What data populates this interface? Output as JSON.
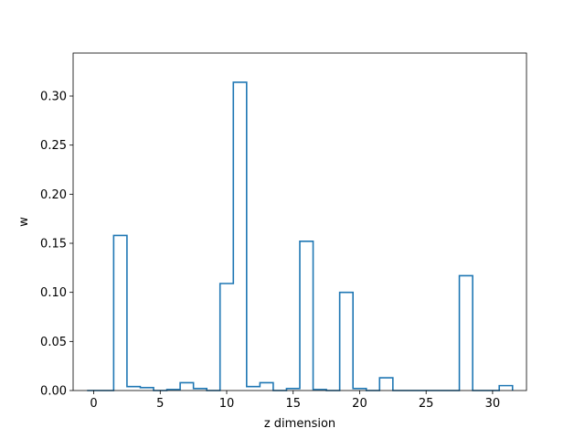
{
  "chart_data": {
    "type": "bar",
    "style": "step-histogram",
    "xlabel": "z dimension",
    "ylabel": "w",
    "xlim": [
      -1.55,
      32.55
    ],
    "ylim": [
      0,
      0.3438
    ],
    "xticks": [
      0,
      5,
      10,
      15,
      20,
      25,
      30
    ],
    "yticks": [
      0.0,
      0.05,
      0.1,
      0.15,
      0.2,
      0.25,
      0.3
    ],
    "ytick_labels": [
      "0.00",
      "0.05",
      "0.10",
      "0.15",
      "0.20",
      "0.25",
      "0.30"
    ],
    "categories": [
      0,
      1,
      2,
      3,
      4,
      5,
      6,
      7,
      8,
      9,
      10,
      11,
      12,
      13,
      14,
      15,
      16,
      17,
      18,
      19,
      20,
      21,
      22,
      23,
      24,
      25,
      26,
      27,
      28,
      29,
      30,
      31
    ],
    "values": [
      0.0,
      0.0,
      0.158,
      0.004,
      0.003,
      0.0,
      0.001,
      0.008,
      0.002,
      0.0,
      0.109,
      0.314,
      0.004,
      0.008,
      0.0,
      0.002,
      0.152,
      0.001,
      0.0,
      0.1,
      0.002,
      0.0,
      0.013,
      0.0,
      0.0,
      0.0,
      0.0,
      0.0,
      0.117,
      0.0,
      0.0,
      0.005
    ],
    "grid": false,
    "colors": {
      "line": "#1f77b4",
      "axes": "#000000"
    }
  }
}
